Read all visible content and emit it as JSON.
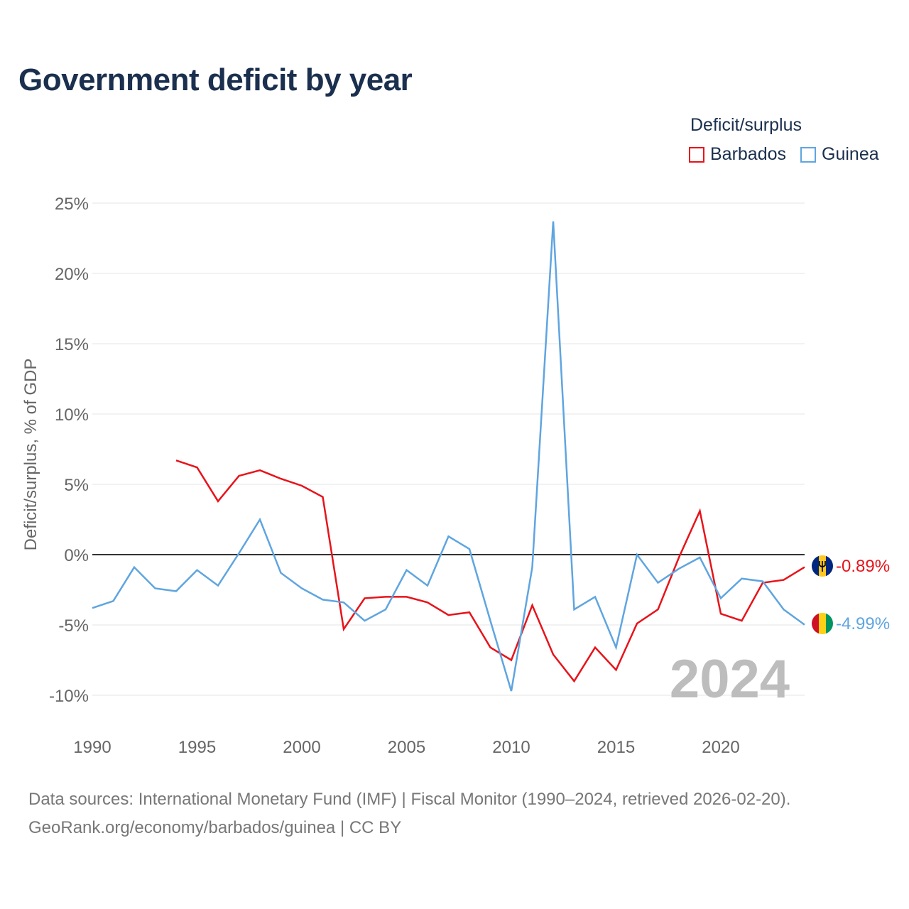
{
  "title": "Government deficit by year",
  "legend": {
    "title": "Deficit/surplus",
    "items": [
      {
        "name": "Barbados",
        "color": "#e8131a"
      },
      {
        "name": "Guinea",
        "color": "#5fa5e0"
      }
    ]
  },
  "source": {
    "line1": "Data sources: International Monetary Fund (IMF) | Fiscal Monitor (1990–2024, retrieved 2026-02-20).",
    "line2": "GeoRank.org/economy/barbados/guinea | CC BY"
  },
  "chart_data": {
    "type": "line",
    "title": "Government deficit by year",
    "xlabel": "",
    "ylabel": "Deficit/surplus, % of GDP",
    "xlim": [
      1990,
      2024
    ],
    "ylim": [
      -12,
      26
    ],
    "x_ticks": [
      1990,
      1995,
      2000,
      2005,
      2010,
      2015,
      2020
    ],
    "x_tick_labels": [
      "1990",
      "1995",
      "2000",
      "2005",
      "2010",
      "2015",
      "2020"
    ],
    "y_ticks": [
      25,
      20,
      15,
      10,
      5,
      0,
      -5,
      -10
    ],
    "y_tick_labels": [
      "25%",
      "20%",
      "15%",
      "10%",
      "5%",
      "0%",
      "-5%",
      "-10%"
    ],
    "watermark_year": "2024",
    "series": [
      {
        "name": "Barbados",
        "color": "#e8131a",
        "end_label": "-0.89%",
        "points": [
          [
            1994,
            6.7
          ],
          [
            1995,
            6.2
          ],
          [
            1996,
            3.8
          ],
          [
            1997,
            5.6
          ],
          [
            1998,
            6.0
          ],
          [
            1999,
            5.4
          ],
          [
            2000,
            4.9
          ],
          [
            2001,
            4.1
          ],
          [
            2002,
            -5.3
          ],
          [
            2003,
            -3.1
          ],
          [
            2004,
            -3.0
          ],
          [
            2005,
            -3.0
          ],
          [
            2006,
            -3.4
          ],
          [
            2007,
            -4.3
          ],
          [
            2008,
            -4.1
          ],
          [
            2009,
            -6.6
          ],
          [
            2010,
            -7.5
          ],
          [
            2011,
            -3.6
          ],
          [
            2012,
            -7.1
          ],
          [
            2013,
            -9.0
          ],
          [
            2014,
            -6.6
          ],
          [
            2015,
            -8.2
          ],
          [
            2016,
            -4.9
          ],
          [
            2017,
            -3.9
          ],
          [
            2018,
            -0.2
          ],
          [
            2019,
            3.1
          ],
          [
            2020,
            -4.2
          ],
          [
            2021,
            -4.7
          ],
          [
            2022,
            -2.0
          ],
          [
            2023,
            -1.8
          ],
          [
            2024,
            -0.89
          ]
        ]
      },
      {
        "name": "Guinea",
        "color": "#5fa5e0",
        "end_label": "-4.99%",
        "points": [
          [
            1990,
            -3.8
          ],
          [
            1991,
            -3.3
          ],
          [
            1992,
            -0.9
          ],
          [
            1993,
            -2.4
          ],
          [
            1994,
            -2.6
          ],
          [
            1995,
            -1.1
          ],
          [
            1996,
            -2.2
          ],
          [
            1997,
            0.1
          ],
          [
            1998,
            2.5
          ],
          [
            1999,
            -1.3
          ],
          [
            2000,
            -2.4
          ],
          [
            2001,
            -3.2
          ],
          [
            2002,
            -3.4
          ],
          [
            2003,
            -4.7
          ],
          [
            2004,
            -3.9
          ],
          [
            2005,
            -1.1
          ],
          [
            2006,
            -2.2
          ],
          [
            2007,
            1.3
          ],
          [
            2008,
            0.4
          ],
          [
            2009,
            -4.7
          ],
          [
            2010,
            -9.7
          ],
          [
            2011,
            -0.9
          ],
          [
            2012,
            23.7
          ],
          [
            2013,
            -3.9
          ],
          [
            2014,
            -3.0
          ],
          [
            2015,
            -6.6
          ],
          [
            2016,
            0.0
          ],
          [
            2017,
            -2.0
          ],
          [
            2018,
            -1.0
          ],
          [
            2019,
            -0.2
          ],
          [
            2020,
            -3.1
          ],
          [
            2021,
            -1.7
          ],
          [
            2022,
            -1.9
          ],
          [
            2023,
            -3.9
          ],
          [
            2024,
            -4.99
          ]
        ]
      }
    ]
  }
}
